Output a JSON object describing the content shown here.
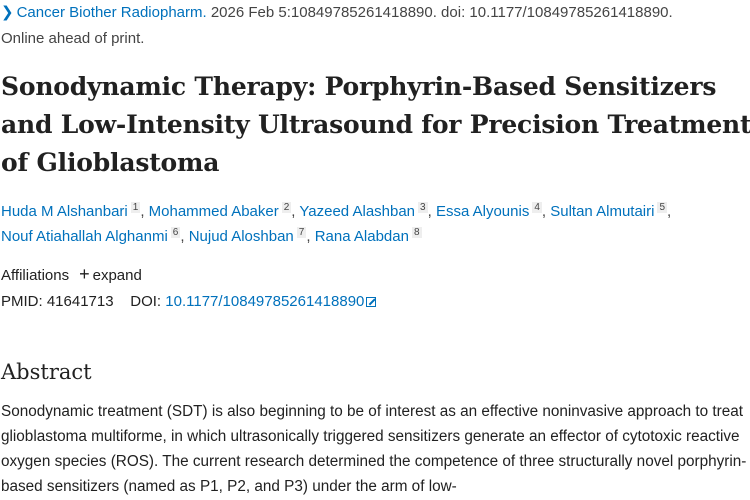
{
  "citation": {
    "journal": "Cancer Biother Radiopharm.",
    "details": "2026 Feb 5:10849785261418890. doi: 10.1177/10849785261418890.",
    "status": "Online ahead of print."
  },
  "title": "Sonodynamic Therapy: Porphyrin-Based Sensitizers and Low-Intensity Ultrasound for Precision Treatment of Glioblastoma",
  "authors": [
    {
      "name": "Huda M Alshanbari",
      "aff": "1"
    },
    {
      "name": "Mohammed Abaker",
      "aff": "2"
    },
    {
      "name": "Yazeed Alashban",
      "aff": "3"
    },
    {
      "name": "Essa Alyounis",
      "aff": "4"
    },
    {
      "name": "Sultan Almutairi",
      "aff": "5"
    },
    {
      "name": "Nouf Atiahallah Alghanmi",
      "aff": "6"
    },
    {
      "name": "Nujud Aloshban",
      "aff": "7"
    },
    {
      "name": "Rana Alabdan",
      "aff": "8"
    }
  ],
  "affiliations": {
    "label": "Affiliations",
    "expand": "expand"
  },
  "ids": {
    "pmid_label": "PMID:",
    "pmid": "41641713",
    "doi_label": "DOI:",
    "doi": "10.1177/10849785261418890"
  },
  "abstract": {
    "heading": "Abstract",
    "text": "Sonodynamic treatment (SDT) is also beginning to be of interest as an effective noninvasive approach to treat glioblastoma multiforme, in which ultrasonically triggered sensitizers generate an effector of cytotoxic reactive oxygen species (ROS). The current research determined the competence of three structurally novel porphyrin-based sensitizers (named as P1, P2, and P3) under the arm of low-"
  }
}
